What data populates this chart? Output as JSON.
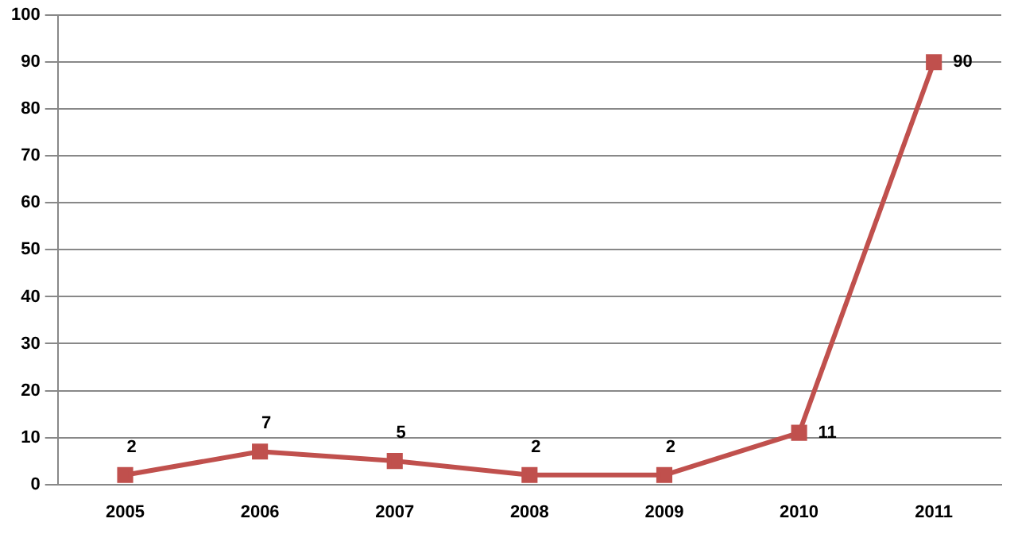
{
  "chart_data": {
    "type": "line",
    "categories": [
      "2005",
      "2006",
      "2007",
      "2008",
      "2009",
      "2010",
      "2011"
    ],
    "series": [
      {
        "color": "#c0504d",
        "values": [
          2,
          7,
          5,
          2,
          2,
          11,
          90
        ]
      }
    ],
    "ylim": [
      0,
      100
    ],
    "yticks": [
      0,
      10,
      20,
      30,
      40,
      50,
      60,
      70,
      80,
      90,
      100
    ],
    "grid": "y",
    "legend": false,
    "marker": "square",
    "line_style": "solid",
    "data_labels": true
  }
}
